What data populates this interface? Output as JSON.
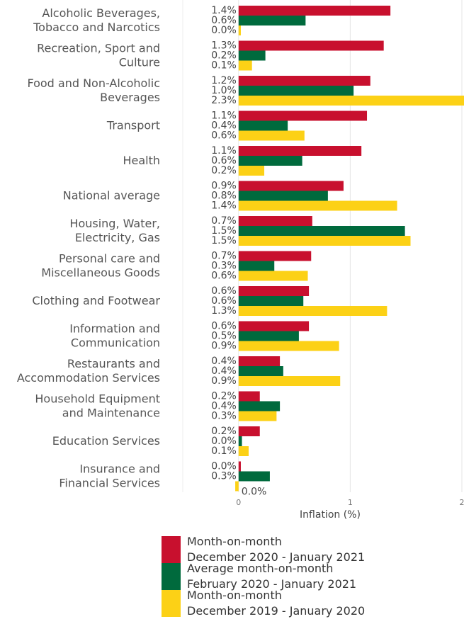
{
  "chart_data": {
    "type": "hbar",
    "categories": [
      "Alcoholic Beverages,\nTobacco and Narcotics",
      "Recreation, Sport and\nCulture",
      "Food and Non-Alcoholic\nBeverages",
      "Transport",
      "Health",
      "National average",
      "Housing, Water,\nElectricity, Gas",
      "Personal care and\nMiscellaneous Goods",
      "Clothing and Footwear",
      "Information and\nCommunication",
      "Restaurants and\nAccommodation Services",
      "Household Equipment\nand Maintenance",
      "Education Services",
      "Insurance and\nFinancial Services"
    ],
    "series": [
      {
        "name": "Month-on-month\nDecember 2020 - January 2021",
        "color": "#c8102e",
        "values": [
          1.36,
          1.3,
          1.18,
          1.15,
          1.1,
          0.94,
          0.66,
          0.65,
          0.63,
          0.63,
          0.37,
          0.19,
          0.19,
          0.02
        ],
        "value_labels": [
          "1.4%",
          "1.3%",
          "1.2%",
          "1.1%",
          "1.1%",
          "0.9%",
          "0.7%",
          "0.7%",
          "0.6%",
          "0.6%",
          "0.4%",
          "0.2%",
          "0.2%",
          "0.0%"
        ]
      },
      {
        "name": "Average month-on-month\nFebruary 2020 - January 2021",
        "color": "#006a3d",
        "values": [
          0.6,
          0.24,
          1.03,
          0.44,
          0.57,
          0.8,
          1.49,
          0.32,
          0.58,
          0.54,
          0.4,
          0.37,
          0.03,
          0.28
        ],
        "value_labels": [
          "0.6%",
          "0.2%",
          "1.0%",
          "0.4%",
          "0.6%",
          "0.8%",
          "1.5%",
          "0.3%",
          "0.6%",
          "0.5%",
          "0.4%",
          "0.4%",
          "0.0%",
          "0.3%"
        ]
      },
      {
        "name": "Month-on-month\nDecember 2019 - January 2020",
        "color": "#fcd116",
        "values": [
          0.02,
          0.12,
          2.3,
          0.59,
          0.23,
          1.42,
          1.54,
          0.62,
          1.33,
          0.9,
          0.91,
          0.34,
          0.09,
          -0.03
        ],
        "value_labels": [
          "0.0%",
          "0.1%",
          "2.3%",
          "0.6%",
          "0.2%",
          "1.4%",
          "1.5%",
          "0.6%",
          "1.3%",
          "0.9%",
          "0.9%",
          "0.3%",
          "0.1%",
          "0.0%"
        ]
      }
    ],
    "xlabel": "Inflation (%)",
    "xlim": [
      -0.5,
      2
    ],
    "xticks": [
      0,
      1,
      2
    ],
    "grid": true
  }
}
